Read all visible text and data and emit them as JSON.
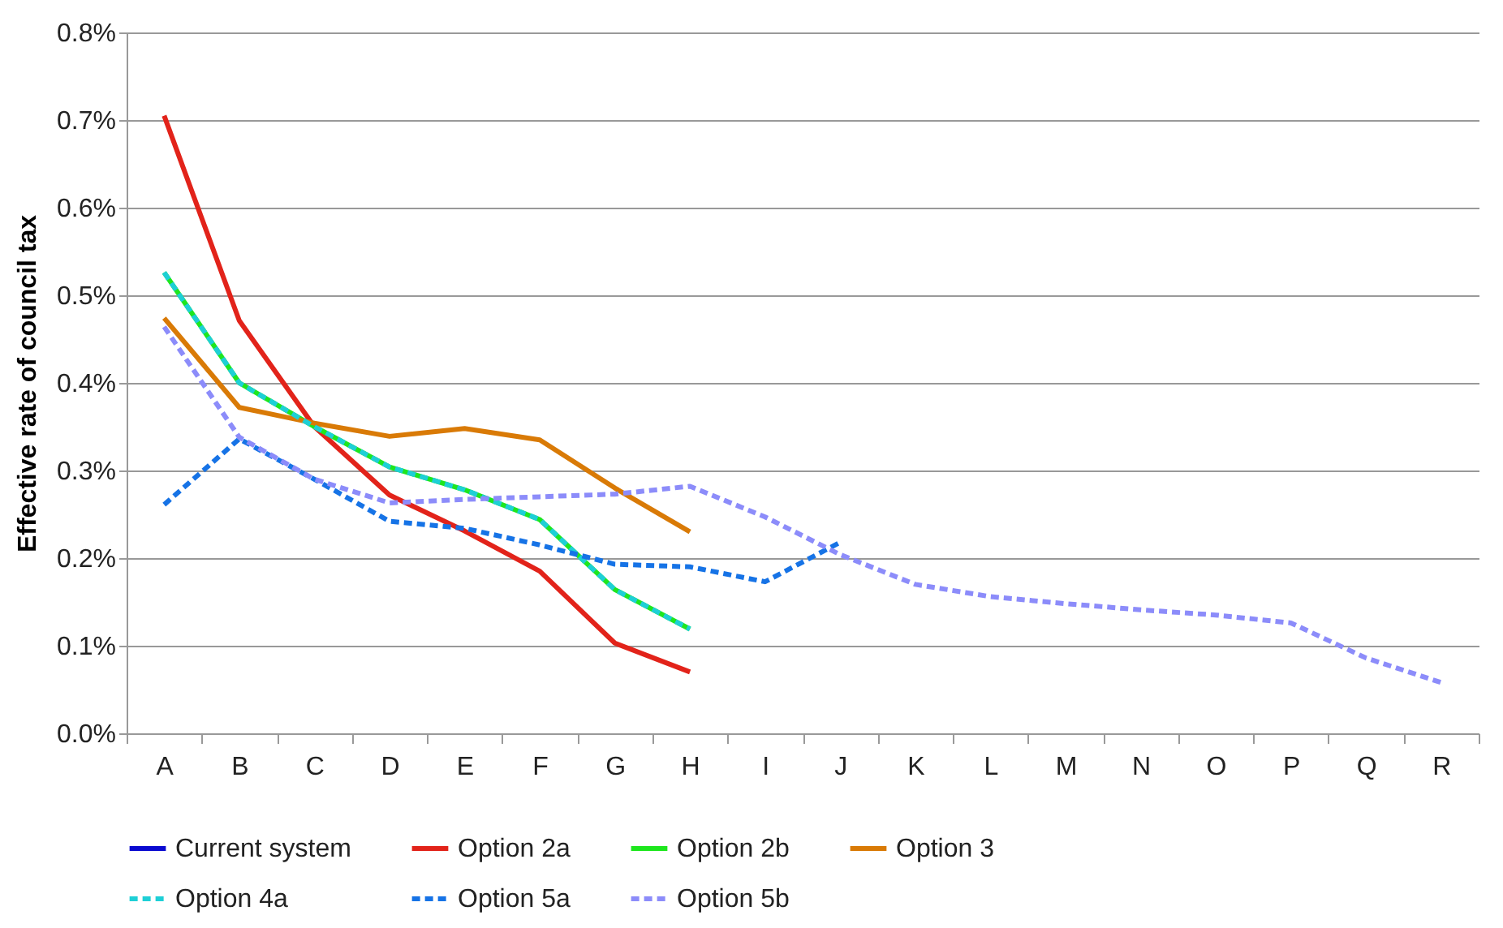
{
  "chart_data": {
    "type": "line",
    "ylabel": "Effective rate of council tax",
    "categories": [
      "A",
      "B",
      "C",
      "D",
      "E",
      "F",
      "G",
      "H",
      "I",
      "J",
      "K",
      "L",
      "M",
      "N",
      "O",
      "P",
      "Q",
      "R"
    ],
    "ylim": [
      0,
      0.8
    ],
    "yticks": [
      {
        "value": 0,
        "label": "0.0%"
      },
      {
        "value": 0.1,
        "label": "0.1%"
      },
      {
        "value": 0.2,
        "label": "0.2%"
      },
      {
        "value": 0.3,
        "label": "0.3%"
      },
      {
        "value": 0.4,
        "label": "0.4%"
      },
      {
        "value": 0.5,
        "label": "0.5%"
      },
      {
        "value": 0.6,
        "label": "0.6%"
      },
      {
        "value": 0.7,
        "label": "0.7%"
      },
      {
        "value": 0.8,
        "label": "0.8%"
      }
    ],
    "grid": "y",
    "legend": "bottom",
    "marker": "none",
    "series": [
      {
        "name": "Current system",
        "color": "#0a0ad0",
        "line_style": "solid",
        "values": [
          null,
          null,
          null,
          null,
          null,
          null,
          null,
          null,
          null,
          null,
          null,
          null,
          null,
          null,
          null,
          null,
          null,
          null
        ]
      },
      {
        "name": "Option 2a",
        "color": "#e2231a",
        "line_style": "solid",
        "values": [
          0.705,
          0.471,
          0.35,
          0.272,
          0.231,
          0.185,
          0.103,
          0.07,
          null,
          null,
          null,
          null,
          null,
          null,
          null,
          null,
          null,
          null
        ]
      },
      {
        "name": "Option 2b",
        "color": "#1ee61e",
        "line_style": "solid",
        "values": [
          0.526,
          0.4,
          0.35,
          0.304,
          0.278,
          0.244,
          0.164,
          0.119,
          null,
          null,
          null,
          null,
          null,
          null,
          null,
          null,
          null,
          null
        ]
      },
      {
        "name": "Option 3",
        "color": "#d97a06",
        "line_style": "solid",
        "values": [
          0.474,
          0.372,
          0.354,
          0.339,
          0.348,
          0.335,
          0.28,
          0.23,
          null,
          null,
          null,
          null,
          null,
          null,
          null,
          null,
          null,
          null
        ]
      },
      {
        "name": "Option 4a",
        "color": "#1ecfd6",
        "line_style": "dashed",
        "values": [
          0.526,
          0.4,
          0.35,
          0.304,
          0.278,
          0.244,
          0.164,
          0.119,
          null,
          null,
          null,
          null,
          null,
          null,
          null,
          null,
          null,
          null
        ]
      },
      {
        "name": "Option 5a",
        "color": "#1673e6",
        "line_style": "dashed",
        "values": [
          0.261,
          0.336,
          0.29,
          0.242,
          0.234,
          0.215,
          0.193,
          0.19,
          0.173,
          0.218,
          null,
          null,
          null,
          null,
          null,
          null,
          null,
          null
        ]
      },
      {
        "name": "Option 5b",
        "color": "#8c8cfa",
        "line_style": "dashed",
        "values": [
          0.464,
          0.338,
          0.29,
          0.263,
          0.267,
          0.27,
          0.273,
          0.282,
          0.247,
          0.204,
          0.17,
          0.156,
          0.148,
          0.141,
          0.135,
          0.126,
          0.086,
          0.058
        ]
      }
    ]
  }
}
